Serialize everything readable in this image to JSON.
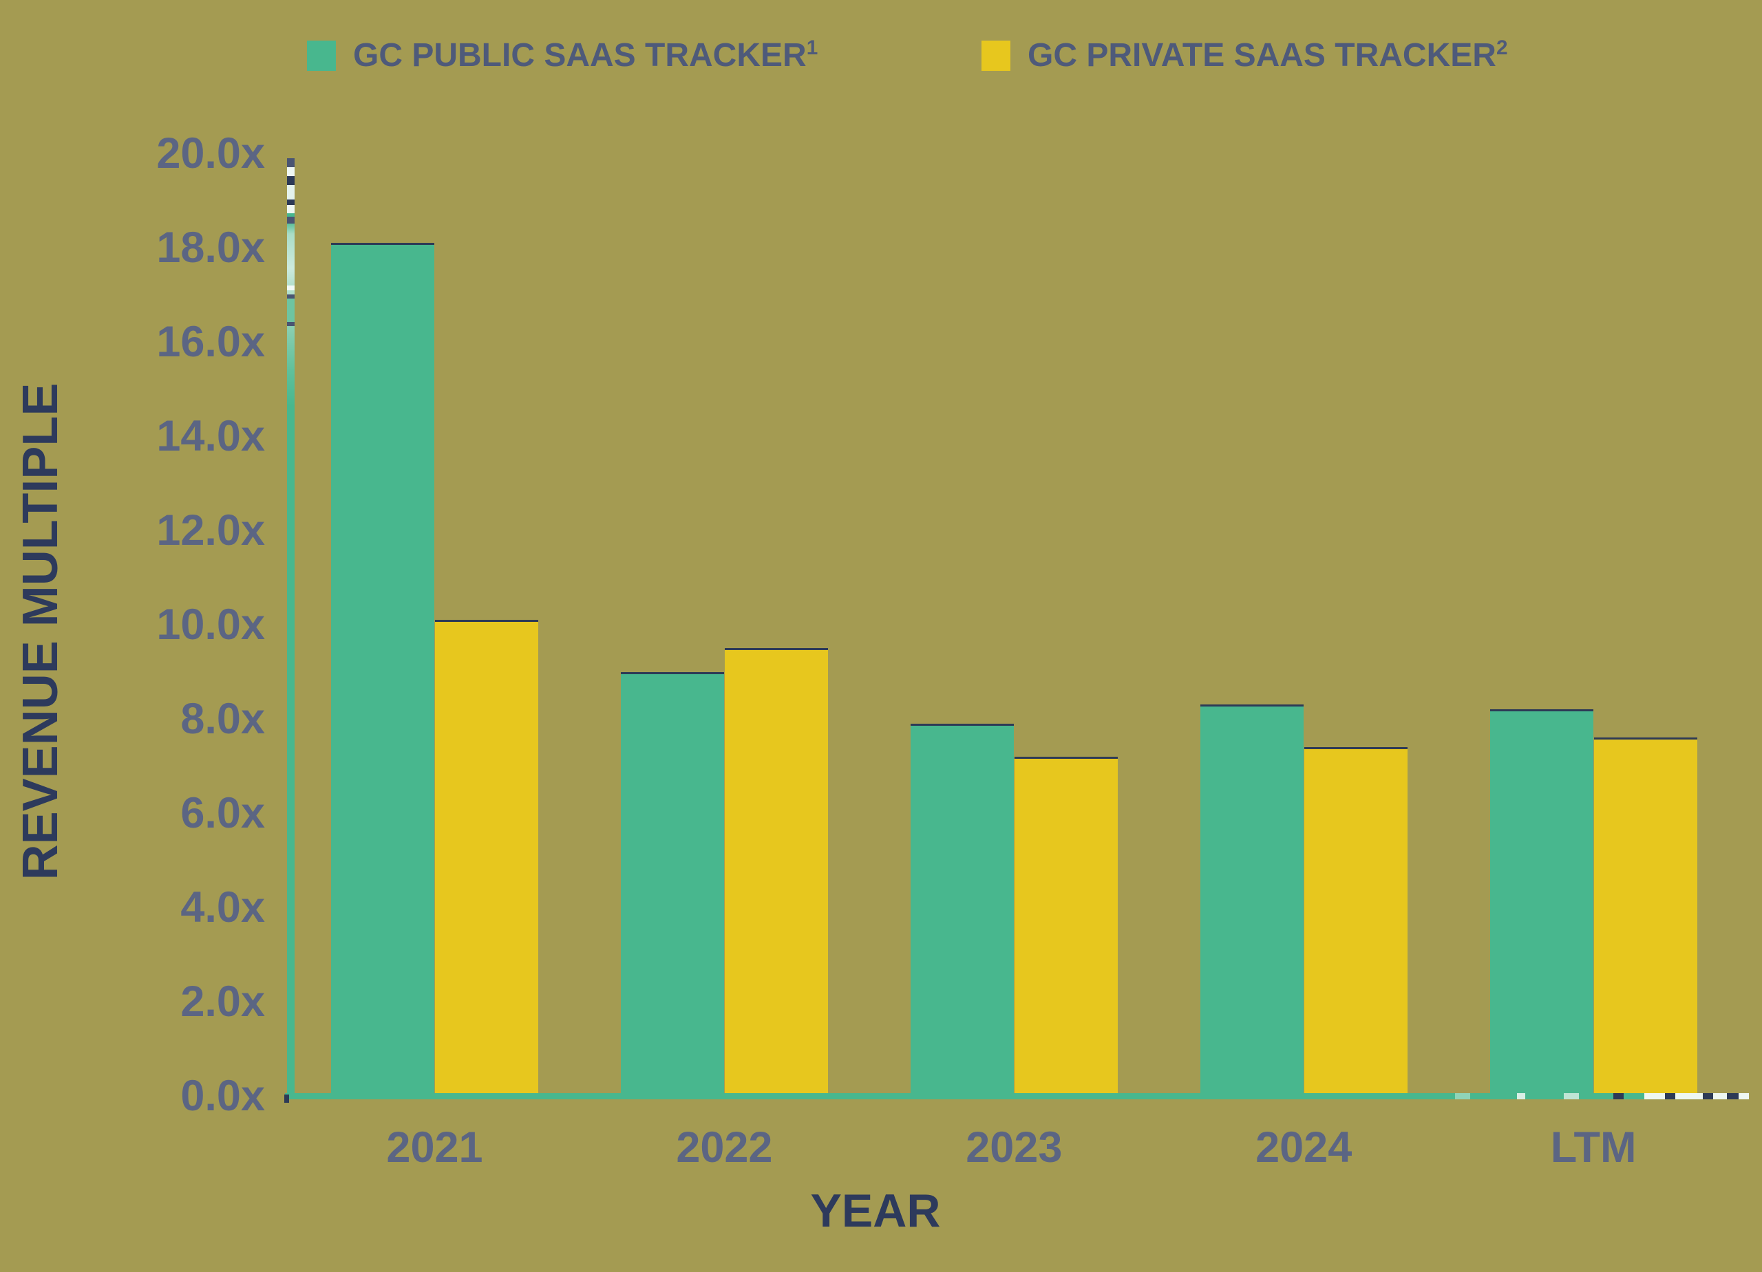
{
  "chart_data": {
    "type": "bar",
    "title": "",
    "categories": [
      "2021",
      "2022",
      "2023",
      "2024",
      "LTM"
    ],
    "series": [
      {
        "name": "GC PUBLIC SAAS TRACKER",
        "superscript": "1",
        "color": "#48B78E",
        "values": [
          18.1,
          9.0,
          7.9,
          8.3,
          8.2
        ]
      },
      {
        "name": "GC PRIVATE SAAS TRACKER",
        "superscript": "2",
        "color": "#E7C71E",
        "values": [
          10.1,
          9.5,
          7.2,
          7.4,
          7.6
        ]
      }
    ],
    "xlabel": "YEAR",
    "ylabel": "REVENUE MULTIPLE",
    "ylim": [
      0,
      20
    ],
    "ytick_step": 2,
    "y_tick_labels": [
      "0.0x",
      "2.0x",
      "4.0x",
      "6.0x",
      "8.0x",
      "10.0x",
      "12.0x",
      "14.0x",
      "16.0x",
      "18.0x",
      "20.0x"
    ],
    "grid": false,
    "legend_position": "top"
  },
  "colors": {
    "background": "#A49B52",
    "public_series": "#48B78E",
    "private_series": "#E7C71E",
    "bar_top_border": "#2D3A56",
    "axis_title_text": "#2D3A5C",
    "tick_text": "#5B6583",
    "legend_text": "#4E5A7A"
  }
}
